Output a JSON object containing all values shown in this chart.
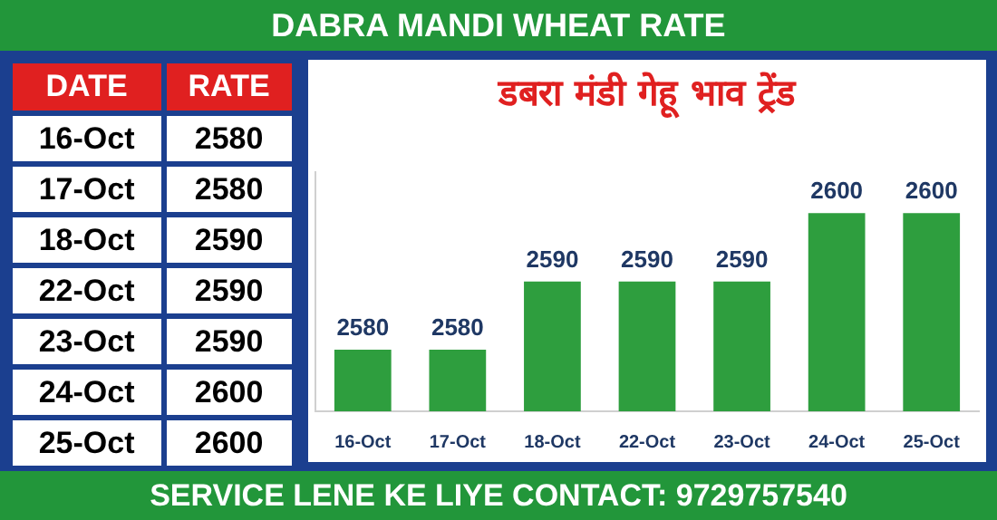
{
  "chart_data": [
    {
      "type": "other",
      "annotations": [
        "DATE",
        "RATE",
        "16-Oct",
        "2580",
        "17-Oct",
        "2580",
        "18-Oct",
        "2590",
        "22-Oct",
        "2590",
        "23-Oct",
        "2590",
        "24-Oct",
        "2600",
        "25-Oct",
        "2600"
      ]
    },
    {
      "type": "bar",
      "title": "DABRA MANDI WHEAT RATE",
      "subtitle": "डबरा मंडी गेहू भाव ट्रेंड",
      "categories": [
        "16-Oct",
        "17-Oct",
        "18-Oct",
        "22-Oct",
        "23-Oct",
        "24-Oct",
        "25-Oct"
      ],
      "values": [
        2580,
        2580,
        2590,
        2590,
        2590,
        2600,
        2600
      ],
      "color": "#2e9e3e",
      "ylim": [
        2571,
        2606
      ],
      "data_labels": true,
      "tick_labels": "x",
      "grid": false,
      "legend": false,
      "annotations": [
        "SERVICE LENE KE LIYE CONTACT: 9729757540"
      ]
    }
  ]
}
